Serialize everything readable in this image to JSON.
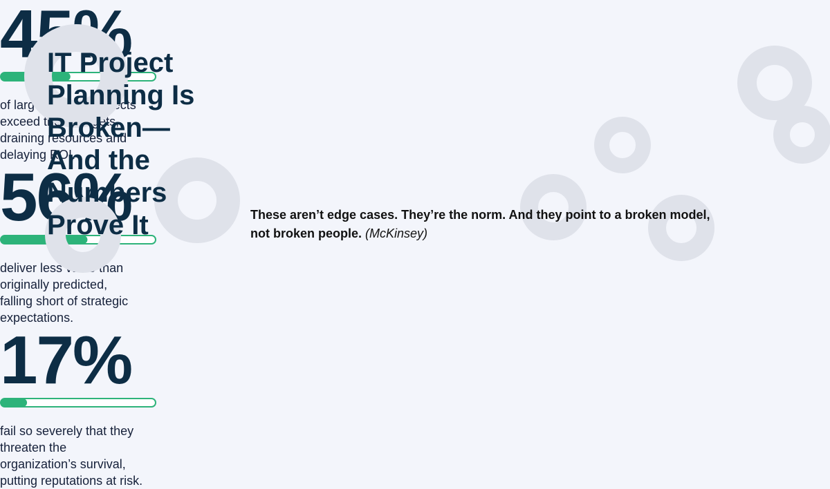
{
  "title_lines": [
    "IT Project",
    "Planning Is",
    "Broken—",
    "And the",
    "Numbers",
    "Prove It"
  ],
  "stats": [
    {
      "value": 45,
      "label": "45%",
      "lines": [
        "of large-scale IT projects",
        "exceed their budgets,",
        "draining resources and",
        "delaying ROI."
      ]
    },
    {
      "value": 56,
      "label": "56%",
      "lines": [
        "deliver less value than",
        "originally predicted,",
        "falling short of strategic",
        "expectations."
      ]
    },
    {
      "value": 17,
      "label": "17%",
      "lines": [
        "fail so severely that they",
        "threaten the",
        "organization’s survival,",
        "putting reputations at risk."
      ]
    }
  ],
  "statement": "These aren’t edge cases. They’re the norm. And they point to a broken model, not broken people.",
  "source": "(McKinsey)"
}
